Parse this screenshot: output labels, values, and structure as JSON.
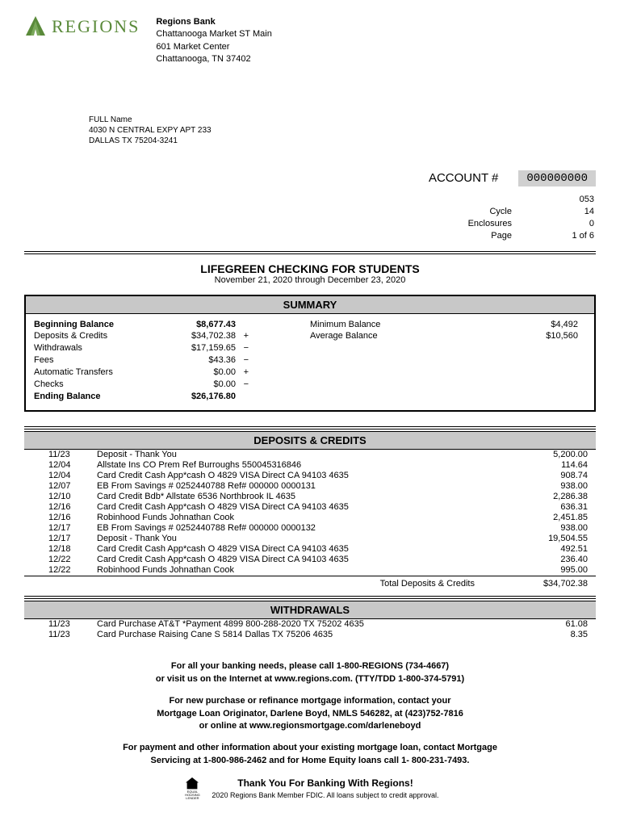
{
  "header": {
    "logo_text": "REGIONS",
    "bank_name": "Regions Bank",
    "addr1": "Chattanooga Market ST Main",
    "addr2": "601 Market Center",
    "addr3": "Chattanooga, TN 37402"
  },
  "recipient": {
    "name": "FULL Name",
    "addr1": "4030 N CENTRAL EXPY APT 233",
    "addr2": "DALLAS TX 75204-3241"
  },
  "account": {
    "label": "ACCOUNT #",
    "number": "000000000",
    "meta": [
      {
        "label": "",
        "value": "053"
      },
      {
        "label": "Cycle",
        "value": "14"
      },
      {
        "label": "Enclosures",
        "value": "0"
      },
      {
        "label": "Page",
        "value": "1 of 6"
      }
    ]
  },
  "title": "LIFEGREEN CHECKING FOR STUDENTS",
  "period": "November 21, 2020 through December 23, 2020",
  "summary": {
    "heading": "SUMMARY",
    "left": [
      {
        "label": "Beginning Balance",
        "value": "$8,677.43",
        "sign": "",
        "bold": true
      },
      {
        "label": "Deposits & Credits",
        "value": "$34,702.38",
        "sign": "+"
      },
      {
        "label": "Withdrawals",
        "value": "$17,159.65",
        "sign": "−"
      },
      {
        "label": "Fees",
        "value": "$43.36",
        "sign": "−"
      },
      {
        "label": "Automatic Transfers",
        "value": "$0.00",
        "sign": "+"
      },
      {
        "label": "Checks",
        "value": "$0.00",
        "sign": "−"
      },
      {
        "label": "Ending Balance",
        "value": "$26,176.80",
        "sign": "",
        "bold": true
      }
    ],
    "right": [
      {
        "label": "Minimum Balance",
        "value": "$4,492"
      },
      {
        "label": "Average Balance",
        "value": "$10,560"
      }
    ]
  },
  "deposits": {
    "heading": "DEPOSITS & CREDITS",
    "rows": [
      {
        "date": "11/23",
        "desc": "Deposit - Thank You",
        "amt": "5,200.00"
      },
      {
        "date": "12/04",
        "desc": "Allstate Ins CO  Prem Ref Burroughs     550045316846",
        "amt": "114.64"
      },
      {
        "date": "12/04",
        "desc": "Card Credit Cash App*cash O  4829 VISA Direct   CA 94103    4635",
        "amt": "908.74"
      },
      {
        "date": "12/07",
        "desc": "EB From Savings # 0252440788 Ref# 000000 0000131",
        "amt": "938.00"
      },
      {
        "date": "12/10",
        "desc": "Card Credit Bdb* Allstate    6536 Northbrook   IL       4635",
        "amt": "2,286.38"
      },
      {
        "date": "12/16",
        "desc": "Card Credit Cash App*cash O  4829 VISA Direct   CA 94103    4635",
        "amt": "636.31"
      },
      {
        "date": "12/16",
        "desc": "Robinhood       Funds Johnathan Cook",
        "amt": "2,451.85"
      },
      {
        "date": "12/17",
        "desc": "EB From Savings # 0252440788 Ref# 000000 0000132",
        "amt": "938.00"
      },
      {
        "date": "12/17",
        "desc": "Deposit - Thank You",
        "amt": "19,504.55"
      },
      {
        "date": "12/18",
        "desc": "Card Credit Cash App*cash O  4829 VISA Direct   CA 94103    4635",
        "amt": "492.51"
      },
      {
        "date": "12/22",
        "desc": "Card Credit Cash App*cash O  4829 VISA Direct   CA 94103    4635",
        "amt": "236.40"
      },
      {
        "date": "12/22",
        "desc": "Robinhood       Funds Johnathan Cook",
        "amt": "995.00"
      }
    ],
    "total_label": "Total Deposits & Credits",
    "total": "$34,702.38"
  },
  "withdrawals": {
    "heading": "WITHDRAWALS",
    "rows": [
      {
        "date": "11/23",
        "desc": "Card Purchase AT&T   *Payment  4899 800-288-2020  TX 75202    4635",
        "amt": "61.08"
      },
      {
        "date": "11/23",
        "desc": "Card Purchase Raising Cane S   5814 Dallas       TX 75206    4635",
        "amt": "8.35"
      }
    ]
  },
  "footer": {
    "p1a": "For all your banking needs, please call 1-800-REGIONS (734-4667)",
    "p1b": "or visit us on the Internet at www.regions.com. (TTY/TDD 1-800-374-5791)",
    "p2a": "For new purchase or refinance mortgage information, contact your",
    "p2b": "Mortgage Loan Originator, Darlene Boyd, NMLS 546282, at (423)752-7816",
    "p2c": "or online at www.regionsmortgage.com/darleneboyd",
    "p3a": "For payment and other information about your existing mortgage loan, contact Mortgage",
    "p3b": "Servicing at 1-800-986-2462 and for  Home Equity loans call 1- 800-231-7493.",
    "thanks": "Thank You For Banking With Regions!",
    "fine": "2020 Regions Bank Member FDIC. All loans subject to credit approval."
  }
}
